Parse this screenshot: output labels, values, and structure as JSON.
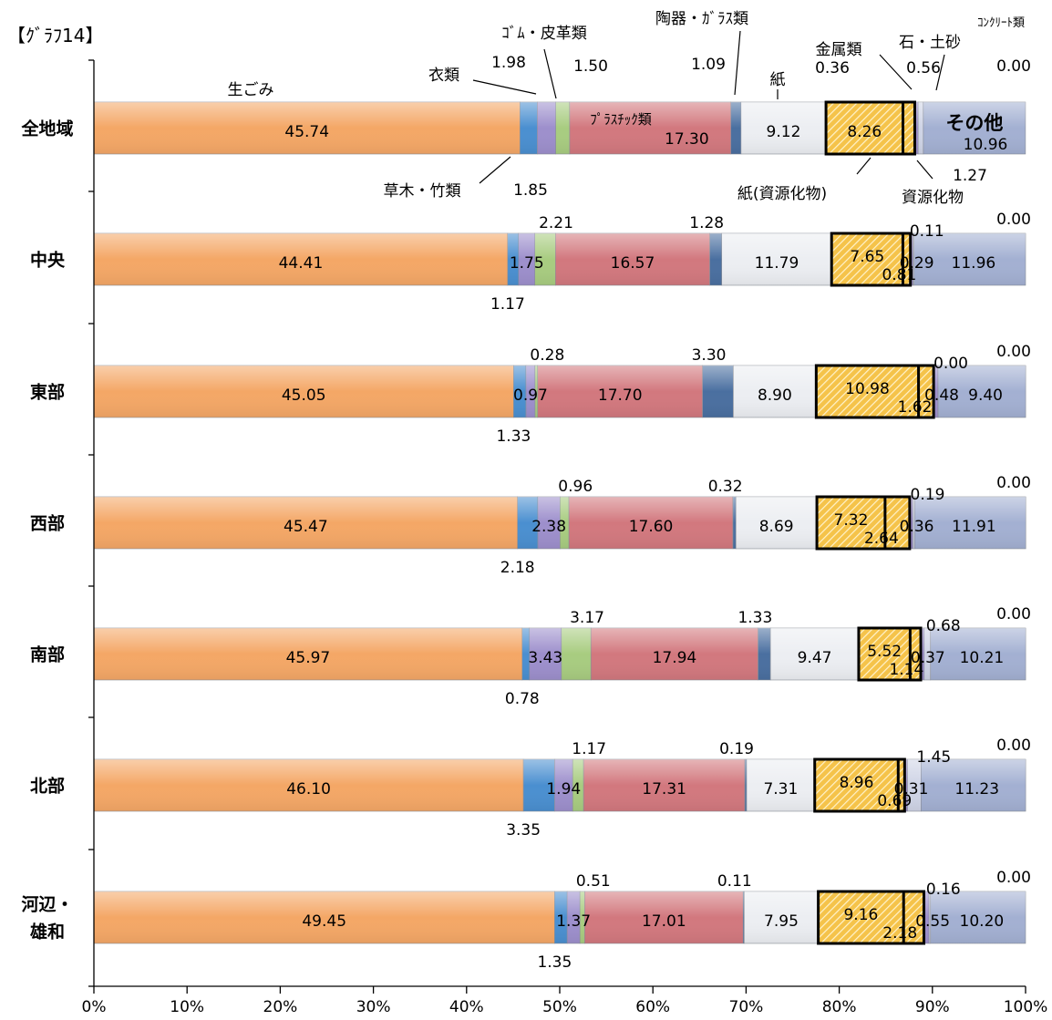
{
  "title": "【ｸﾞﾗﾌ14】",
  "chart_data": {
    "type": "bar",
    "orientation": "horizontal",
    "stacked": true,
    "normalized": true,
    "xlim": [
      0,
      100
    ],
    "x_ticks": [
      "0%",
      "10%",
      "20%",
      "30%",
      "40%",
      "50%",
      "60%",
      "70%",
      "80%",
      "90%",
      "100%"
    ],
    "categories": [
      {
        "label": "全地域",
        "lines": [
          "全地域"
        ]
      },
      {
        "label": "中央",
        "lines": [
          "中央"
        ]
      },
      {
        "label": "東部",
        "lines": [
          "東部"
        ]
      },
      {
        "label": "西部",
        "lines": [
          "西部"
        ]
      },
      {
        "label": "南部",
        "lines": [
          "南部"
        ]
      },
      {
        "label": "北部",
        "lines": [
          "北部"
        ]
      },
      {
        "label": "河辺・雄和",
        "lines": [
          "河辺・",
          "雄和"
        ]
      }
    ],
    "series": [
      {
        "name": "生ごみ",
        "color": "#f4a766",
        "values": [
          45.74,
          44.41,
          45.05,
          45.47,
          45.97,
          46.1,
          49.45
        ]
      },
      {
        "name": "草木・竹類",
        "color": "#4a8fd0",
        "values": [
          1.85,
          1.17,
          1.33,
          2.18,
          0.78,
          3.35,
          1.35
        ]
      },
      {
        "name": "衣類",
        "color": "#9d8fcc",
        "values": [
          1.98,
          1.75,
          0.97,
          2.38,
          3.43,
          1.94,
          1.37
        ]
      },
      {
        "name": "ｺﾞﾑ・皮革類",
        "color": "#a8cc80",
        "values": [
          1.5,
          2.21,
          0.28,
          0.96,
          3.17,
          1.17,
          0.51
        ]
      },
      {
        "name": "ﾌﾟﾗｽﾁｯｸ類",
        "color": "#d2787e",
        "values": [
          17.3,
          16.57,
          17.7,
          17.6,
          17.94,
          17.31,
          17.01
        ]
      },
      {
        "name": "陶器・ｶﾞﾗｽ類",
        "color": "#4a6fa0",
        "values": [
          1.09,
          1.28,
          3.3,
          0.32,
          1.33,
          0.19,
          0.11
        ]
      },
      {
        "name": "紙",
        "color": "#eceef2",
        "values": [
          9.12,
          11.79,
          8.9,
          8.69,
          9.47,
          7.31,
          7.95
        ]
      },
      {
        "name": "紙(資源化物)",
        "color": "#f5c34a",
        "hatched": true,
        "values": [
          8.26,
          7.65,
          10.98,
          7.32,
          5.52,
          8.96,
          9.16
        ]
      },
      {
        "name": "資源化物",
        "color": "#f5c34a",
        "hatched": true,
        "values": [
          1.27,
          0.81,
          1.62,
          2.64,
          1.14,
          0.69,
          2.18
        ]
      },
      {
        "name": "金属類",
        "color": "#9d8fcc",
        "values": [
          0.36,
          0.29,
          0.48,
          0.36,
          0.37,
          0.31,
          0.55
        ]
      },
      {
        "name": "石・土砂",
        "color": "#cfd4e6",
        "values": [
          0.56,
          0.11,
          0.0,
          0.19,
          0.68,
          1.45,
          0.16
        ]
      },
      {
        "name": "ｺﾝｸﾘｰﾄ類",
        "color": "#cfd4e6",
        "values": [
          0.0,
          0.0,
          0.0,
          0.0,
          0.0,
          0.0,
          0.0
        ]
      },
      {
        "name": "その他",
        "color": "#a3b0d2",
        "values": [
          10.96,
          11.96,
          9.4,
          11.91,
          10.21,
          11.23,
          10.2
        ]
      }
    ],
    "value_labels": [
      [
        "45.74",
        "1.85",
        "1.98",
        "1.50",
        "17.30",
        "1.09",
        "9.12",
        "8.26",
        "1.27",
        "0.36",
        "0.56",
        "0.00",
        "10.96"
      ],
      [
        "44.41",
        "1.17",
        "1.75",
        "2.21",
        "16.57",
        "1.28",
        "11.79",
        "7.65",
        "0.81",
        "0.29",
        "0.11",
        "0.00",
        "11.96"
      ],
      [
        "45.05",
        "1.33",
        "0.97",
        "0.28",
        "17.70",
        "3.30",
        "8.90",
        "10.98",
        "1.62",
        "0.48",
        "0.00",
        "0.00",
        "9.40"
      ],
      [
        "45.47",
        "2.18",
        "2.38",
        "0.96",
        "17.60",
        "0.32",
        "8.69",
        "7.32",
        "2.64",
        "0.36",
        "0.19",
        "0.00",
        "11.91"
      ],
      [
        "45.97",
        "0.78",
        "3.43",
        "3.17",
        "17.94",
        "1.33",
        "9.47",
        "5.52",
        "1.14",
        "0.37",
        "0.68",
        "0.00",
        "10.21"
      ],
      [
        "46.10",
        "3.35",
        "1.94",
        "1.17",
        "17.31",
        "0.19",
        "7.31",
        "8.96",
        "0.69",
        "0.31",
        "1.45",
        "0.00",
        "11.23"
      ],
      [
        "49.45",
        "1.35",
        "1.37",
        "0.51",
        "17.01",
        "0.11",
        "7.95",
        "9.16",
        "2.18",
        "0.55",
        "0.16",
        "0.00",
        "10.20"
      ]
    ],
    "grid": false,
    "legend": "callouts on first bar"
  }
}
